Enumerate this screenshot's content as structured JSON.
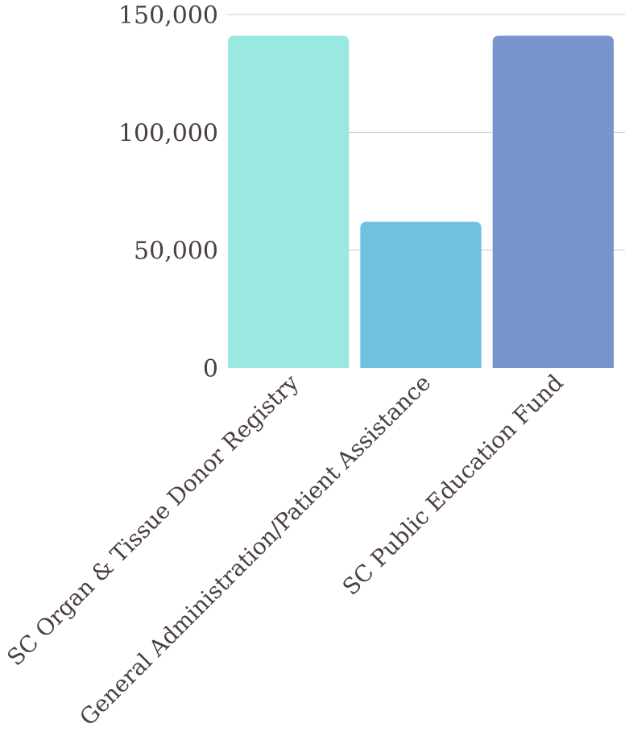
{
  "chart_data": {
    "type": "bar",
    "title": "",
    "xlabel": "",
    "ylabel": "",
    "categories": [
      "SC Organ & Tissue Donor Registry",
      "General Administration/Patient Assistance",
      "SC Public Education Fund"
    ],
    "values": [
      141000,
      62000,
      141000
    ],
    "colors": [
      "#99e9e2",
      "#70c0e0",
      "#7794cc"
    ],
    "ylim": [
      0,
      150000
    ],
    "yticks": [
      0,
      50000,
      100000,
      150000
    ],
    "ytick_labels": [
      "0",
      "50,000",
      "100,000",
      "150,000"
    ],
    "grid": true,
    "legend": "none"
  }
}
